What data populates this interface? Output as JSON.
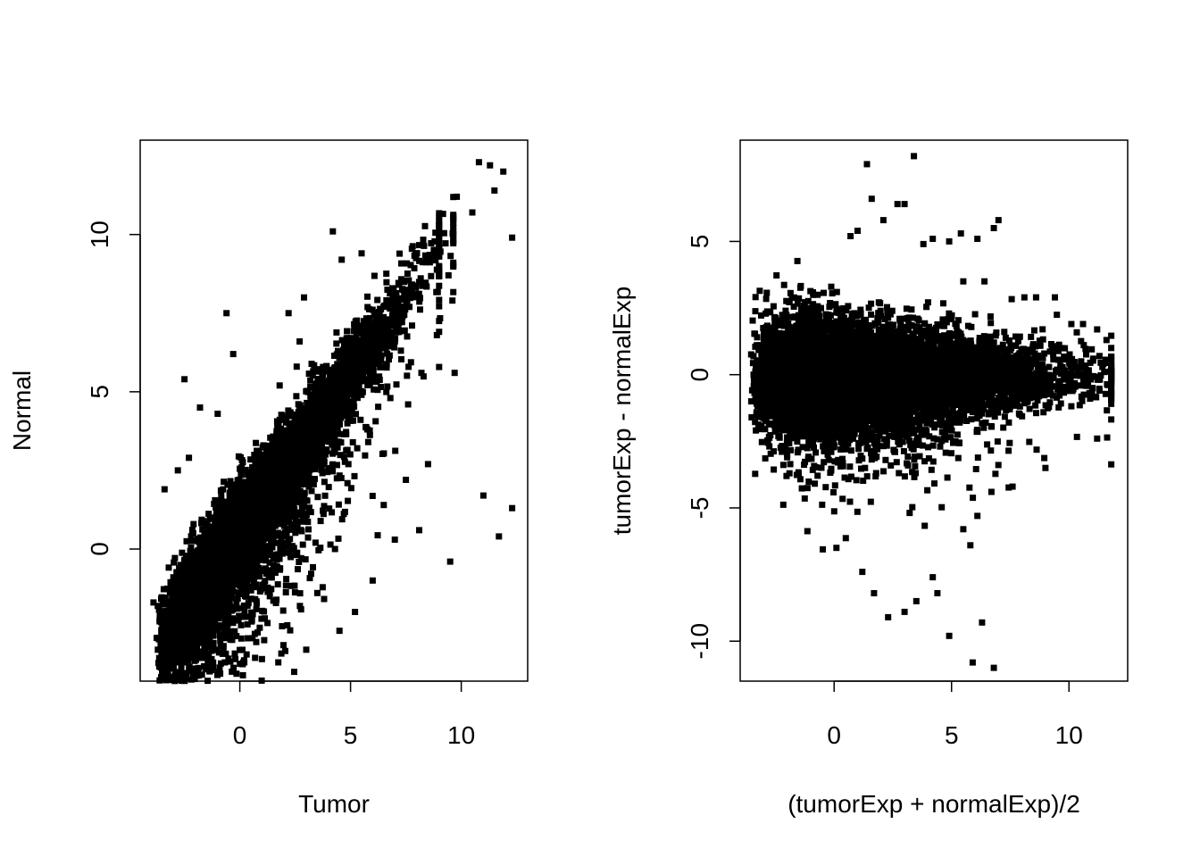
{
  "chart_data": [
    {
      "type": "scatter",
      "title": "",
      "xlabel": "Tumor",
      "ylabel": "Normal",
      "xlim": [
        -4.5,
        13
      ],
      "ylim": [
        -4.2,
        13
      ],
      "xticks": [
        0,
        5,
        10
      ],
      "xtick_labels": [
        "0",
        "5",
        "10"
      ],
      "yticks": [
        0,
        5,
        10
      ],
      "yticks_labels": [
        "0",
        "5",
        "10"
      ],
      "grid": false,
      "marker": "filled-square",
      "color": "#000000",
      "cloud": {
        "description_units": "data",
        "n_points": 9000,
        "x_range": [
          -3.8,
          9.0
        ],
        "relation": "y ≈ x (diagonal band)",
        "spread_sd": 0.6
      },
      "points": [
        [
          -0.6,
          7.5
        ],
        [
          -0.3,
          6.2
        ],
        [
          -2.5,
          5.4
        ],
        [
          -1.8,
          4.5
        ],
        [
          -1.0,
          4.3
        ],
        [
          4.2,
          10.1
        ],
        [
          4.6,
          9.2
        ],
        [
          2.9,
          8.0
        ],
        [
          2.2,
          7.5
        ],
        [
          5.5,
          9.4
        ],
        [
          10.8,
          12.3
        ],
        [
          11.3,
          12.2
        ],
        [
          11.9,
          12.0
        ],
        [
          12.3,
          9.9
        ],
        [
          11.5,
          11.4
        ],
        [
          10.5,
          10.7
        ],
        [
          9.8,
          11.2
        ],
        [
          11.0,
          1.7
        ],
        [
          11.7,
          0.4
        ],
        [
          12.3,
          1.3
        ],
        [
          9.5,
          -0.4
        ],
        [
          8.1,
          0.6
        ],
        [
          7.5,
          2.2
        ],
        [
          8.5,
          2.7
        ],
        [
          9.7,
          5.6
        ],
        [
          9.6,
          7.9
        ],
        [
          8.9,
          6.8
        ],
        [
          6.5,
          1.4
        ],
        [
          7.0,
          0.3
        ],
        [
          6.0,
          -1.0
        ],
        [
          5.2,
          -2.0
        ],
        [
          4.5,
          -2.6
        ],
        [
          3.0,
          -3.2
        ],
        [
          1.0,
          -3.5
        ],
        [
          0.2,
          -3.6
        ],
        [
          -0.2,
          -3.5
        ],
        [
          -1.5,
          -3.0
        ],
        [
          -3.7,
          -3.2
        ],
        [
          -3.9,
          -1.7
        ],
        [
          -3.0,
          -0.9
        ],
        [
          -3.4,
          1.9
        ],
        [
          -2.8,
          2.5
        ],
        [
          -2.3,
          2.9
        ],
        [
          1.8,
          5.2
        ],
        [
          2.7,
          6.6
        ],
        [
          6.8,
          4.8
        ],
        [
          7.6,
          4.6
        ],
        [
          8.2,
          5.6
        ],
        [
          5.8,
          3.4
        ],
        [
          3.5,
          -1.4
        ]
      ]
    },
    {
      "type": "scatter",
      "title": "",
      "xlabel": "(tumorExp + normalExp)/2",
      "ylabel": "tumorExp - normalExp",
      "xlim": [
        -4,
        12.5
      ],
      "ylim": [
        -11.5,
        8.8
      ],
      "xticks": [
        0,
        5,
        10
      ],
      "xtick_labels": [
        "0",
        "5",
        "10"
      ],
      "yticks": [
        -10,
        -5,
        0,
        5
      ],
      "yticks_labels": [
        "-10",
        "-5",
        "0",
        "5"
      ],
      "grid": false,
      "marker": "filled-square",
      "color": "#000000",
      "cloud": {
        "description_units": "data",
        "n_points": 9000,
        "x_range": [
          -3.6,
          11.8
        ],
        "relation": "y ≈ 0 (horizontal band, wider at low x)",
        "spread_sd": 0.9
      },
      "points": [
        [
          1.4,
          7.9
        ],
        [
          3.4,
          8.2
        ],
        [
          1.6,
          6.6
        ],
        [
          2.1,
          5.8
        ],
        [
          2.7,
          6.4
        ],
        [
          3.0,
          6.4
        ],
        [
          1.0,
          5.4
        ],
        [
          0.7,
          5.2
        ],
        [
          3.8,
          4.9
        ],
        [
          4.2,
          5.1
        ],
        [
          4.9,
          5.0
        ],
        [
          5.4,
          5.3
        ],
        [
          6.1,
          5.1
        ],
        [
          6.8,
          5.5
        ],
        [
          7.0,
          5.8
        ],
        [
          5.5,
          3.5
        ],
        [
          6.4,
          3.5
        ],
        [
          8.1,
          2.9
        ],
        [
          8.6,
          2.9
        ],
        [
          9.4,
          2.9
        ],
        [
          10.1,
          1.9
        ],
        [
          10.6,
          1.9
        ],
        [
          11.2,
          1.7
        ],
        [
          11.6,
          1.3
        ],
        [
          11.3,
          0.7
        ],
        [
          11.5,
          0.1
        ],
        [
          11.3,
          -0.6
        ],
        [
          10.9,
          -0.9
        ],
        [
          11.2,
          -2.4
        ],
        [
          9.0,
          -3.5
        ],
        [
          7.6,
          -4.2
        ],
        [
          6.7,
          -4.4
        ],
        [
          6.1,
          -5.3
        ],
        [
          5.5,
          -5.8
        ],
        [
          5.8,
          -6.4
        ],
        [
          4.2,
          -7.6
        ],
        [
          4.4,
          -8.2
        ],
        [
          3.5,
          -8.5
        ],
        [
          3.0,
          -8.9
        ],
        [
          2.3,
          -9.1
        ],
        [
          1.7,
          -8.2
        ],
        [
          1.2,
          -7.4
        ],
        [
          0.1,
          -6.5
        ],
        [
          4.9,
          -9.8
        ],
        [
          6.3,
          -9.3
        ],
        [
          5.9,
          -10.8
        ],
        [
          6.8,
          -11.0
        ],
        [
          -2.0,
          -3.1
        ],
        [
          -1.9,
          -3.7
        ],
        [
          -3.4,
          -0.4
        ]
      ]
    }
  ]
}
